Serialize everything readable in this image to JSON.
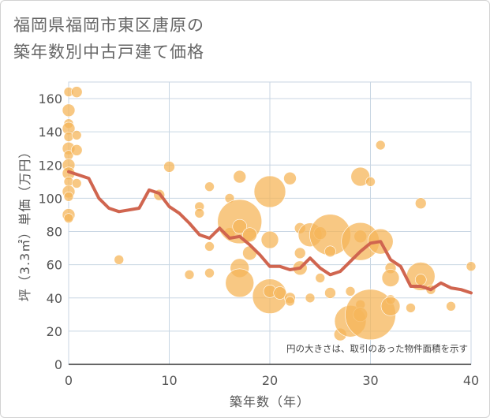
{
  "chart_data": {
    "type": "scatter",
    "title_lines": [
      "福岡県福岡市東区唐原の",
      "築年数別中古戸建て価格"
    ],
    "xlabel": "築年数（年）",
    "ylabel": "坪（3.3㎡）単価（万円）",
    "xlim": [
      0,
      40
    ],
    "ylim": [
      0,
      170
    ],
    "x_ticks": [
      0,
      10,
      20,
      30,
      40
    ],
    "y_ticks": [
      0,
      20,
      40,
      60,
      80,
      100,
      120,
      140,
      160
    ],
    "grid": true,
    "note": "円の大きさは、取引のあった物件面積を示す",
    "colors": {
      "bubble": "#f5b65a",
      "line": "#d0654f",
      "grid": "#c8d6e3"
    },
    "bubbles": [
      {
        "x": 0,
        "y": 164,
        "s": 6
      },
      {
        "x": 0,
        "y": 153,
        "s": 8
      },
      {
        "x": 0,
        "y": 145,
        "s": 6
      },
      {
        "x": 0,
        "y": 142,
        "s": 8
      },
      {
        "x": 0,
        "y": 137,
        "s": 6
      },
      {
        "x": 0,
        "y": 130,
        "s": 8
      },
      {
        "x": 0,
        "y": 126,
        "s": 6
      },
      {
        "x": 0,
        "y": 120,
        "s": 8
      },
      {
        "x": 0,
        "y": 115,
        "s": 8
      },
      {
        "x": 0,
        "y": 110,
        "s": 6
      },
      {
        "x": 0,
        "y": 104,
        "s": 8
      },
      {
        "x": 0,
        "y": 101,
        "s": 6
      },
      {
        "x": 0,
        "y": 90,
        "s": 8
      },
      {
        "x": 0,
        "y": 88,
        "s": 6
      },
      {
        "x": 0.8,
        "y": 164,
        "s": 7
      },
      {
        "x": 0.8,
        "y": 138,
        "s": 6
      },
      {
        "x": 0.8,
        "y": 129,
        "s": 7
      },
      {
        "x": 0.8,
        "y": 109,
        "s": 6
      },
      {
        "x": 5,
        "y": 63,
        "s": 6
      },
      {
        "x": 9,
        "y": 102,
        "s": 7
      },
      {
        "x": 10,
        "y": 119,
        "s": 7
      },
      {
        "x": 12,
        "y": 54,
        "s": 6
      },
      {
        "x": 13,
        "y": 95,
        "s": 6
      },
      {
        "x": 13,
        "y": 91,
        "s": 6
      },
      {
        "x": 14,
        "y": 107,
        "s": 6
      },
      {
        "x": 14,
        "y": 71,
        "s": 6
      },
      {
        "x": 14,
        "y": 55,
        "s": 6
      },
      {
        "x": 16,
        "y": 100,
        "s": 6
      },
      {
        "x": 16,
        "y": 79,
        "s": 7
      },
      {
        "x": 17,
        "y": 113,
        "s": 8
      },
      {
        "x": 17,
        "y": 86,
        "s": 28
      },
      {
        "x": 17,
        "y": 83,
        "s": 9
      },
      {
        "x": 17,
        "y": 58,
        "s": 12
      },
      {
        "x": 17,
        "y": 49,
        "s": 18
      },
      {
        "x": 18,
        "y": 78,
        "s": 9
      },
      {
        "x": 18,
        "y": 67,
        "s": 9
      },
      {
        "x": 20,
        "y": 104,
        "s": 20
      },
      {
        "x": 20,
        "y": 75,
        "s": 11
      },
      {
        "x": 20,
        "y": 41,
        "s": 22
      },
      {
        "x": 20,
        "y": 44,
        "s": 8
      },
      {
        "x": 21,
        "y": 43,
        "s": 8
      },
      {
        "x": 22,
        "y": 112,
        "s": 8
      },
      {
        "x": 22,
        "y": 40,
        "s": 7
      },
      {
        "x": 22,
        "y": 38,
        "s": 6
      },
      {
        "x": 23,
        "y": 82,
        "s": 7
      },
      {
        "x": 23,
        "y": 67,
        "s": 7
      },
      {
        "x": 23,
        "y": 58,
        "s": 9
      },
      {
        "x": 24,
        "y": 78,
        "s": 15
      },
      {
        "x": 24,
        "y": 40,
        "s": 6
      },
      {
        "x": 25,
        "y": 79,
        "s": 8
      },
      {
        "x": 25,
        "y": 52,
        "s": 6
      },
      {
        "x": 26,
        "y": 78,
        "s": 26
      },
      {
        "x": 26,
        "y": 68,
        "s": 7
      },
      {
        "x": 26,
        "y": 43,
        "s": 7
      },
      {
        "x": 27,
        "y": 18,
        "s": 8
      },
      {
        "x": 28,
        "y": 44,
        "s": 6
      },
      {
        "x": 28,
        "y": 26,
        "s": 20
      },
      {
        "x": 29,
        "y": 113,
        "s": 12
      },
      {
        "x": 29,
        "y": 77,
        "s": 8
      },
      {
        "x": 29,
        "y": 74,
        "s": 24
      },
      {
        "x": 29,
        "y": 36,
        "s": 6
      },
      {
        "x": 29,
        "y": 30,
        "s": 9
      },
      {
        "x": 30,
        "y": 110,
        "s": 6
      },
      {
        "x": 30,
        "y": 30,
        "s": 32
      },
      {
        "x": 31,
        "y": 132,
        "s": 6
      },
      {
        "x": 31,
        "y": 74,
        "s": 16
      },
      {
        "x": 32,
        "y": 58,
        "s": 7
      },
      {
        "x": 32,
        "y": 52,
        "s": 11
      },
      {
        "x": 32,
        "y": 39,
        "s": 6
      },
      {
        "x": 32,
        "y": 35,
        "s": 12
      },
      {
        "x": 34,
        "y": 34,
        "s": 6
      },
      {
        "x": 35,
        "y": 97,
        "s": 7
      },
      {
        "x": 35,
        "y": 53,
        "s": 18
      },
      {
        "x": 35,
        "y": 51,
        "s": 7
      },
      {
        "x": 36,
        "y": 45,
        "s": 6
      },
      {
        "x": 38,
        "y": 35,
        "s": 6
      },
      {
        "x": 40,
        "y": 59,
        "s": 6
      }
    ],
    "trend": {
      "x": [
        0,
        1,
        2,
        3,
        4,
        5,
        6,
        7,
        8,
        9,
        10,
        11,
        12,
        13,
        14,
        15,
        16,
        17,
        18,
        19,
        20,
        21,
        22,
        23,
        24,
        25,
        26,
        27,
        28,
        29,
        30,
        31,
        32,
        33,
        34,
        35,
        36,
        37,
        38,
        39,
        40
      ],
      "y": [
        116,
        114,
        112,
        100,
        94,
        92,
        93,
        94,
        105,
        103,
        95,
        91,
        85,
        78,
        76,
        82,
        76,
        77,
        72,
        66,
        59,
        59,
        57,
        58,
        64,
        58,
        54,
        56,
        62,
        68,
        73,
        74,
        63,
        59,
        47,
        47,
        45,
        49,
        46,
        45,
        43
      ]
    }
  }
}
